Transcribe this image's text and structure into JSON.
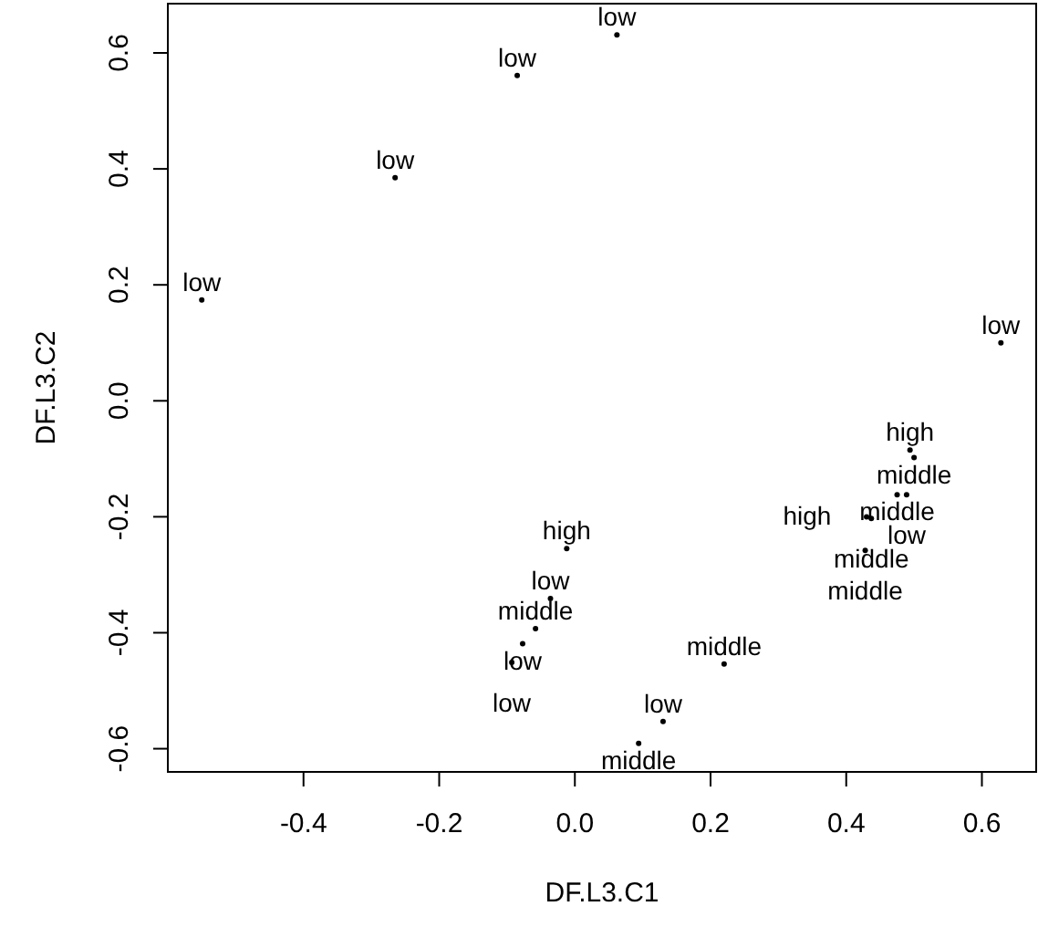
{
  "chart_data": {
    "type": "scatter",
    "xlabel": "DF.L3.C1",
    "ylabel": "DF.L3.C2",
    "xlim": [
      -0.6,
      0.68
    ],
    "ylim": [
      -0.64,
      0.685
    ],
    "xticks": [
      {
        "value": -0.4,
        "label": "-0.4"
      },
      {
        "value": -0.2,
        "label": "-0.2"
      },
      {
        "value": 0,
        "label": "0.0"
      },
      {
        "value": 0.2,
        "label": "0.2"
      },
      {
        "value": 0.4,
        "label": "0.4"
      },
      {
        "value": 0.6,
        "label": "0.6"
      }
    ],
    "yticks": [
      {
        "value": -0.6,
        "label": "-0.6"
      },
      {
        "value": -0.4,
        "label": "-0.4"
      },
      {
        "value": -0.2,
        "label": "-0.2"
      },
      {
        "value": 0,
        "label": "0.0"
      },
      {
        "value": 0.2,
        "label": "0.2"
      },
      {
        "value": 0.4,
        "label": "0.4"
      },
      {
        "value": 0.6,
        "label": "0.6"
      }
    ],
    "marker": "circle",
    "series": [
      {
        "color": "#000000",
        "x": [
          0.062,
          -0.085,
          -0.265,
          -0.55,
          0.628,
          0.494,
          0.5,
          0.475,
          0.489,
          0.43,
          0.437,
          0.428,
          -0.012,
          -0.036,
          -0.058,
          -0.077,
          -0.093,
          0.22,
          0.13,
          0.094
        ],
        "values": [
          0.631,
          0.561,
          0.385,
          0.174,
          0.1,
          -0.085,
          -0.098,
          -0.162,
          -0.162,
          -0.2,
          -0.203,
          -0.258,
          -0.255,
          -0.341,
          -0.393,
          -0.419,
          -0.451,
          -0.454,
          -0.553,
          -0.591
        ],
        "value_labels": [
          "low",
          "low",
          "low",
          "low",
          "low",
          "high",
          "middle",
          "middle",
          "low",
          "high",
          "middle",
          "middle",
          "high",
          "low",
          "middle",
          "low",
          "low",
          "middle",
          "low",
          "middle"
        ]
      }
    ]
  }
}
